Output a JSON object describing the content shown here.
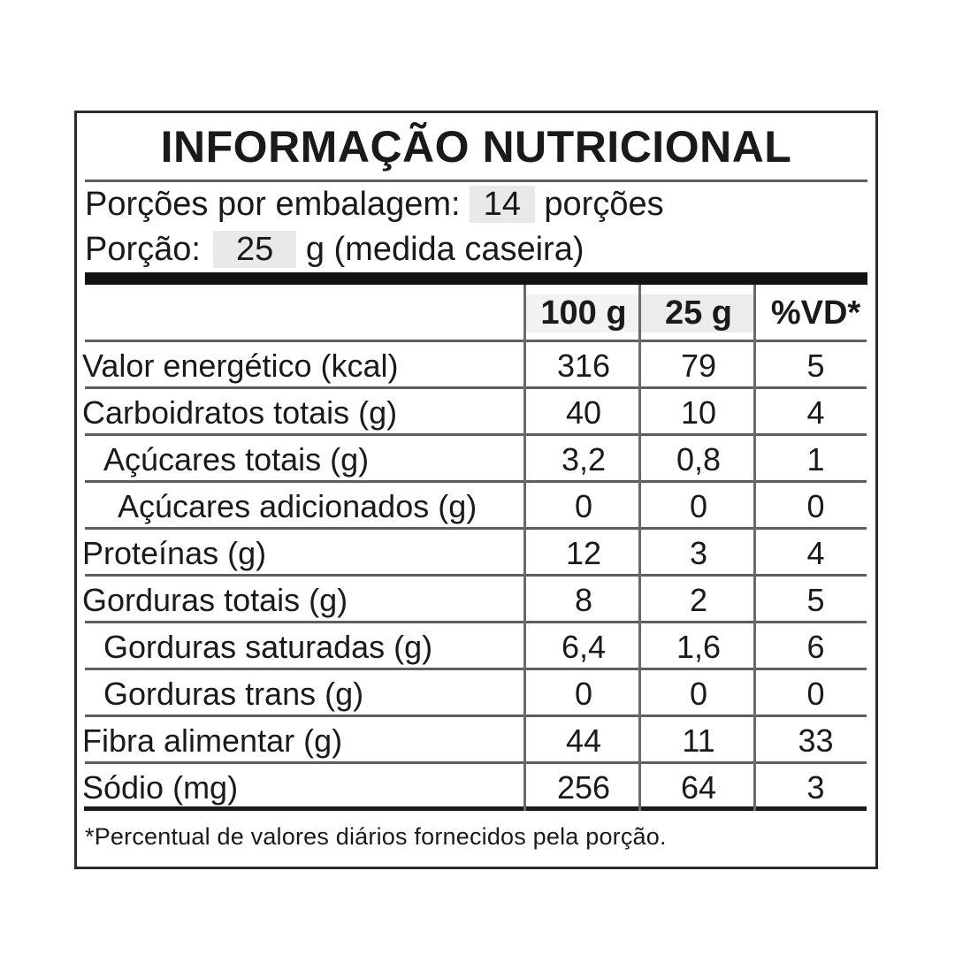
{
  "label": {
    "title": "INFORMAÇÃO NUTRICIONAL",
    "servings": {
      "label": "Porções por embalagem:",
      "value": "14",
      "suffix": "porções"
    },
    "portion": {
      "label": "Porção:",
      "value": "25",
      "suffix": "g (medida caseira)"
    },
    "footnote": "*Percentual de valores diários fornecidos pela porção."
  },
  "table": {
    "headers": [
      "100 g",
      "25 g",
      "%VD*"
    ],
    "rows": [
      {
        "name": "Valor energético (kcal)",
        "per100": "316",
        "per25": "79",
        "vd": "5"
      },
      {
        "name": "Carboidratos totais (g)",
        "per100": "40",
        "per25": "10",
        "vd": "4"
      },
      {
        "name": "Açúcares totais (g)",
        "per100": "3,2",
        "per25": "0,8",
        "vd": "1"
      },
      {
        "name": "Açúcares adicionados (g)",
        "per100": "0",
        "per25": "0",
        "vd": "0"
      },
      {
        "name": "Proteínas (g)",
        "per100": "12",
        "per25": "3",
        "vd": "4"
      },
      {
        "name": "Gorduras totais (g)",
        "per100": "8",
        "per25": "2",
        "vd": "5"
      },
      {
        "name": "Gorduras saturadas (g)",
        "per100": "6,4",
        "per25": "1,6",
        "vd": "6"
      },
      {
        "name": "Gorduras trans (g)",
        "per100": "0",
        "per25": "0",
        "vd": "0"
      },
      {
        "name": "Fibra alimentar (g)",
        "per100": "44",
        "per25": "11",
        "vd": "33"
      },
      {
        "name": "Sódio (mg)",
        "per100": "256",
        "per25": "64",
        "vd": "3"
      }
    ]
  },
  "colors": {
    "text": "#1a1a1a",
    "border": "#2b2b2b",
    "grid_line": "#5e5e5e",
    "header_bar": "#131313",
    "highlight": "#e9e9e9",
    "background": "#ffffff"
  }
}
